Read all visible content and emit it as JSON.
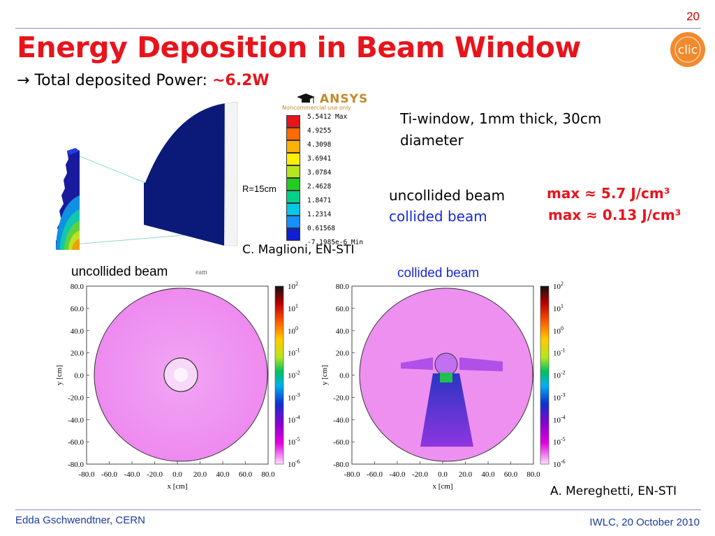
{
  "slide": {
    "page_number": "20",
    "title": "Energy Deposition in Beam Window",
    "bullet": {
      "arrow": "→",
      "label": "Total deposited Power: ",
      "value": "~6.2W"
    },
    "logo_text": "clic"
  },
  "ansys": {
    "brand": "ANSYS",
    "notice": "Noncommercial use only",
    "radius_label": "R=15cm",
    "legend": [
      "5.5412 Max",
      "4.9255",
      "4.3098",
      "3.6941",
      "3.0784",
      "2.4628",
      "1.8471",
      "1.2314",
      "0.61568",
      "-7.1985e-6 Min"
    ],
    "legend_colors": [
      "#e8141c",
      "#ff6a00",
      "#ffb000",
      "#ffee00",
      "#b5e61d",
      "#22cc22",
      "#00d08a",
      "#00c8e8",
      "#1490ff",
      "#1020d0"
    ]
  },
  "window_info": {
    "description": "Ti-window, 1mm thick, 30cm diameter",
    "uncollided_label": "uncollided beam",
    "collided_label": "collided beam",
    "uncollided_max": "max ≈ 5.7 J/cm³",
    "collided_max": "max ≈ 0.13 J/cm³",
    "credit_maglioni": "C. Maglioni, EN-STI"
  },
  "plots": {
    "left_label": "uncollided beam",
    "left_label_bg": "eam",
    "right_label": "collided beam",
    "ytick_labels": [
      "80.0",
      "60.0",
      "40.0",
      "20.0",
      "0.0",
      "-20.0",
      "-40.0",
      "-60.0",
      "-80.0"
    ],
    "xtick_labels": [
      "-80.0",
      "-60.0",
      "-40.0",
      "-20.0",
      "0.0",
      "20.0",
      "40.0",
      "60.0",
      "80.0"
    ],
    "xlabel": "x [cm]",
    "ylabel": "y [cm]",
    "colorbar_labels": [
      "10",
      "10",
      "10",
      "10",
      "10",
      "10",
      "10",
      "10",
      "10"
    ],
    "colorbar_exponents": [
      "2",
      "1",
      "0",
      "-1",
      "-2",
      "-3",
      "-4",
      "-5",
      "-6"
    ],
    "credit_mereghetti": "A. Mereghetti, EN-STI"
  },
  "footer": {
    "left": "Edda Gschwendtner, CERN",
    "right": "IWLC, 20 October 2010"
  }
}
